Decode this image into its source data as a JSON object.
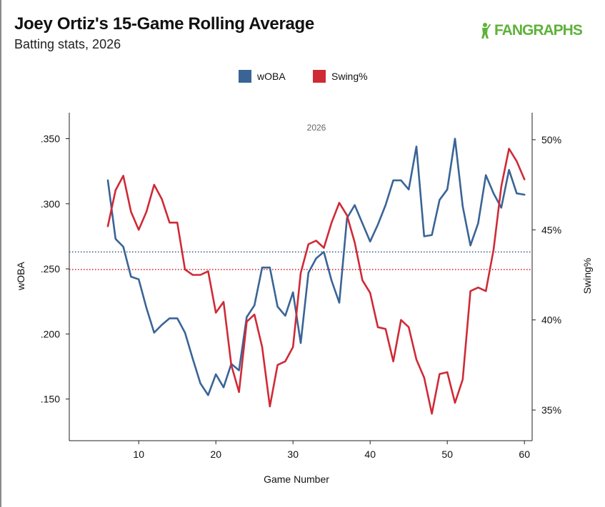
{
  "header": {
    "title": "Joey Ortiz's 15-Game Rolling Average",
    "subtitle": "Batting stats, 2026",
    "logo_text": "FANGRAPHS"
  },
  "colors": {
    "woba": "#3a6496",
    "swing": "#cf2a36",
    "logo": "#5fb23a"
  },
  "chart_data": {
    "type": "line",
    "panel_label": "2026",
    "xlabel": "Game Number",
    "ylabel_left": "wOBA",
    "ylabel_right": "Swing%",
    "xlim": [
      1,
      61
    ],
    "ylim_left": [
      0.118,
      0.37
    ],
    "ylim_right": [
      33.3,
      51.5
    ],
    "x_ticks": [
      10,
      20,
      30,
      40,
      50,
      60
    ],
    "y_ticks_left": [
      {
        "value": 0.15,
        "label": ".150"
      },
      {
        "value": 0.2,
        "label": ".200"
      },
      {
        "value": 0.25,
        "label": ".250"
      },
      {
        "value": 0.3,
        "label": ".300"
      },
      {
        "value": 0.35,
        "label": ".350"
      }
    ],
    "y_ticks_right": [
      {
        "value": 35,
        "label": "35%"
      },
      {
        "value": 40,
        "label": "40%"
      },
      {
        "value": 45,
        "label": "45%"
      },
      {
        "value": 50,
        "label": "50%"
      }
    ],
    "legend": [
      {
        "name": "wOBA",
        "color": "#3a6496"
      },
      {
        "name": "Swing%",
        "color": "#cf2a36"
      }
    ],
    "reference_lines": [
      {
        "series": "wOBA",
        "value": 0.263,
        "style": "dotted"
      },
      {
        "series": "Swing%",
        "value": 42.8,
        "style": "dotted"
      }
    ],
    "x": [
      6,
      7,
      8,
      9,
      10,
      11,
      12,
      13,
      14,
      15,
      16,
      17,
      18,
      19,
      20,
      21,
      22,
      23,
      24,
      25,
      26,
      27,
      28,
      29,
      30,
      31,
      32,
      33,
      34,
      35,
      36,
      37,
      38,
      39,
      40,
      41,
      42,
      43,
      44,
      45,
      46,
      47,
      48,
      49,
      50,
      51,
      52,
      53,
      54,
      55,
      56,
      57,
      58,
      59,
      60
    ],
    "series": [
      {
        "name": "wOBA",
        "axis": "left",
        "values": [
          0.318,
          0.273,
          0.267,
          0.244,
          0.242,
          0.22,
          0.201,
          0.207,
          0.212,
          0.212,
          0.201,
          0.181,
          0.162,
          0.153,
          0.169,
          0.159,
          0.177,
          0.172,
          0.213,
          0.222,
          0.251,
          0.251,
          0.221,
          0.214,
          0.232,
          0.193,
          0.247,
          0.258,
          0.263,
          0.241,
          0.224,
          0.289,
          0.299,
          0.285,
          0.271,
          0.284,
          0.299,
          0.318,
          0.318,
          0.311,
          0.344,
          0.275,
          0.276,
          0.303,
          0.311,
          0.35,
          0.298,
          0.268,
          0.285,
          0.322,
          0.308,
          0.297,
          0.326,
          0.308,
          0.307
        ]
      },
      {
        "name": "Swing%",
        "axis": "right",
        "values": [
          45.2,
          47.2,
          48.0,
          46.0,
          45.0,
          46.0,
          47.5,
          46.7,
          45.4,
          45.4,
          42.8,
          42.5,
          42.5,
          42.7,
          40.4,
          41.0,
          37.5,
          36.0,
          39.9,
          40.3,
          38.5,
          35.2,
          37.5,
          37.7,
          38.5,
          42.6,
          44.2,
          44.4,
          44.0,
          45.4,
          46.5,
          45.8,
          44.3,
          42.2,
          41.5,
          39.6,
          39.5,
          37.7,
          40.0,
          39.6,
          37.8,
          36.8,
          34.8,
          37.0,
          37.1,
          35.4,
          36.7,
          41.6,
          41.8,
          41.6,
          43.9,
          47.4,
          49.5,
          48.8,
          47.8
        ]
      }
    ]
  }
}
